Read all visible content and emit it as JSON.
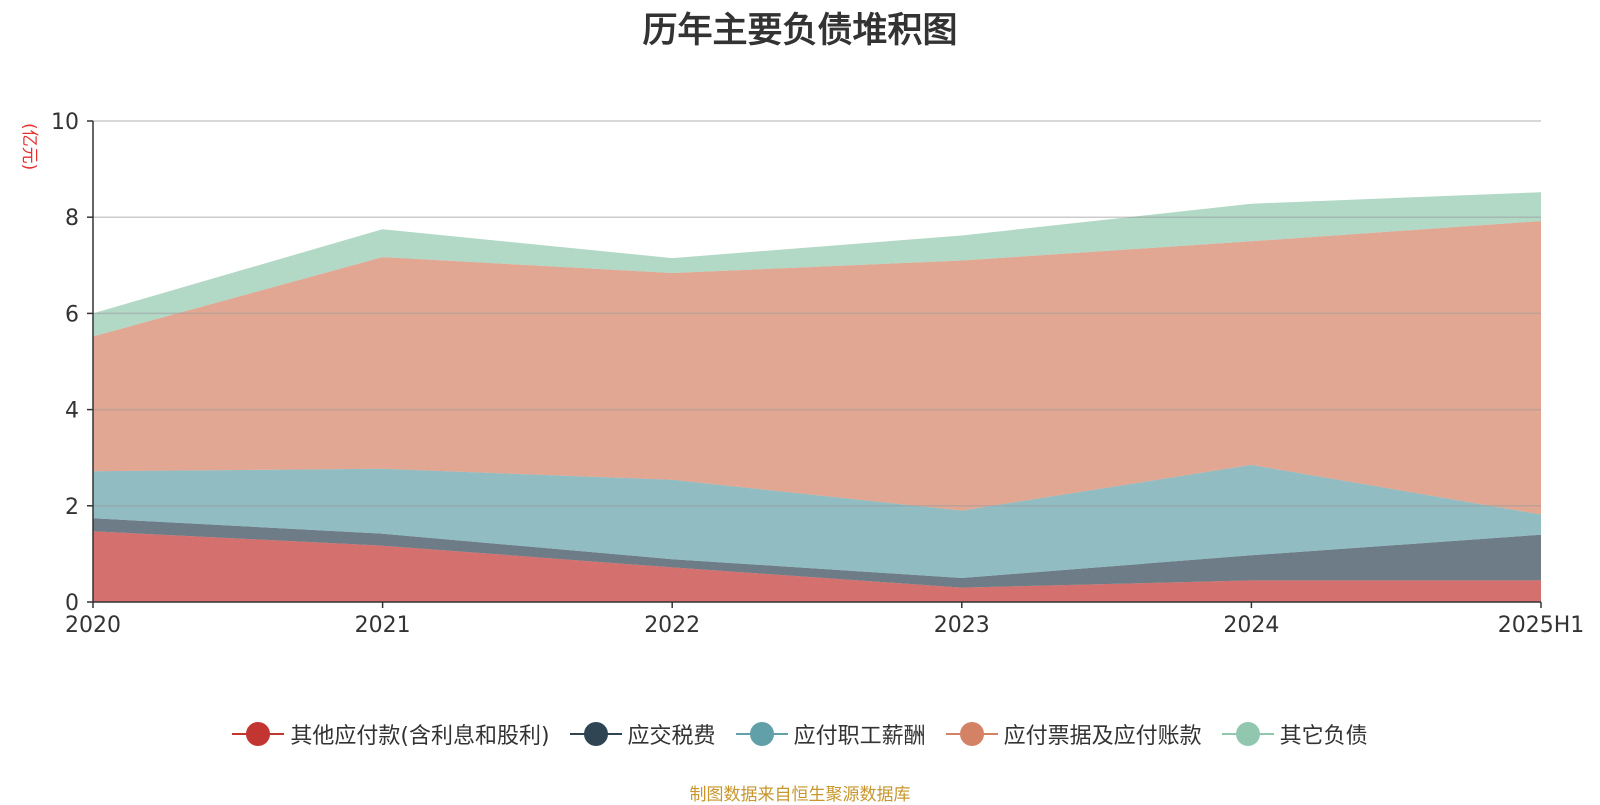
{
  "chart_data": {
    "type": "area",
    "stacked": true,
    "title": "历年主要负债堆积图",
    "ylabel": "(亿元)",
    "source": "制图数据来自恒生聚源数据库",
    "categories": [
      "2020",
      "2021",
      "2022",
      "2023",
      "2024",
      "2025H1"
    ],
    "ylim": [
      0,
      10
    ],
    "yticks": [
      0,
      2,
      4,
      6,
      8,
      10
    ],
    "grid": true,
    "legend_position": "bottom",
    "series": [
      {
        "name": "其他应付款(含利息和股利)",
        "color": "#c23531",
        "values": [
          1.47,
          1.17,
          0.72,
          0.3,
          0.45,
          0.45
        ]
      },
      {
        "name": "应交税费",
        "color": "#2f4554",
        "values": [
          0.27,
          0.25,
          0.17,
          0.2,
          0.52,
          0.95
        ]
      },
      {
        "name": "应付职工薪酬",
        "color": "#61a0a8",
        "values": [
          0.98,
          1.35,
          1.65,
          1.4,
          1.88,
          0.42
        ]
      },
      {
        "name": "应付票据及应付账款",
        "color": "#d48265",
        "values": [
          2.8,
          4.4,
          4.3,
          5.2,
          4.65,
          6.1
        ]
      },
      {
        "name": "其它负债",
        "color": "#91c7ae",
        "values": [
          0.48,
          0.58,
          0.31,
          0.52,
          0.78,
          0.6
        ]
      }
    ]
  }
}
